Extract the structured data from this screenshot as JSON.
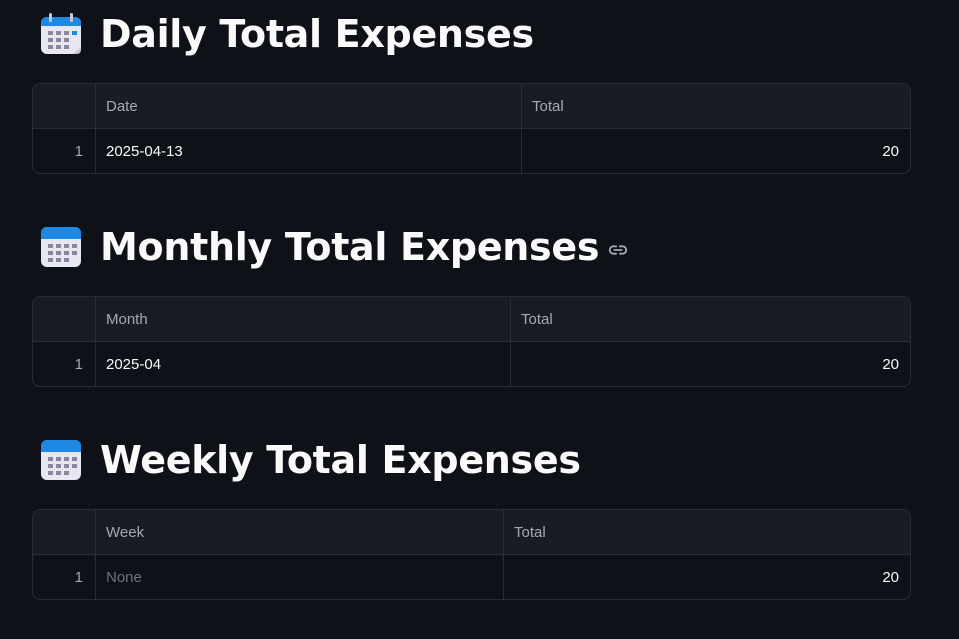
{
  "sections": [
    {
      "title": "Daily Total Expenses",
      "icon": "calendar-icon",
      "columns": [
        "",
        "Date",
        "Total"
      ],
      "rows": [
        {
          "index": "1",
          "key": "2025-04-13",
          "total": "20"
        }
      ]
    },
    {
      "title": "Monthly Total Expenses",
      "icon": "calendar-icon",
      "anchor_icon": "link-icon",
      "columns": [
        "",
        "Month",
        "Total"
      ],
      "rows": [
        {
          "index": "1",
          "key": "2025-04",
          "total": "20"
        }
      ]
    },
    {
      "title": "Weekly Total Expenses",
      "icon": "calendar-icon",
      "columns": [
        "",
        "Week",
        "Total"
      ],
      "rows": [
        {
          "index": "1",
          "key": "None",
          "total": "20"
        }
      ]
    }
  ],
  "colors": {
    "background": "#0e1117",
    "table_header": "#1a1c24",
    "border": "#2a2d36",
    "text": "#fafafa",
    "muted_text": "#a3a8b4",
    "calendar_blue": "#1e88e5"
  }
}
